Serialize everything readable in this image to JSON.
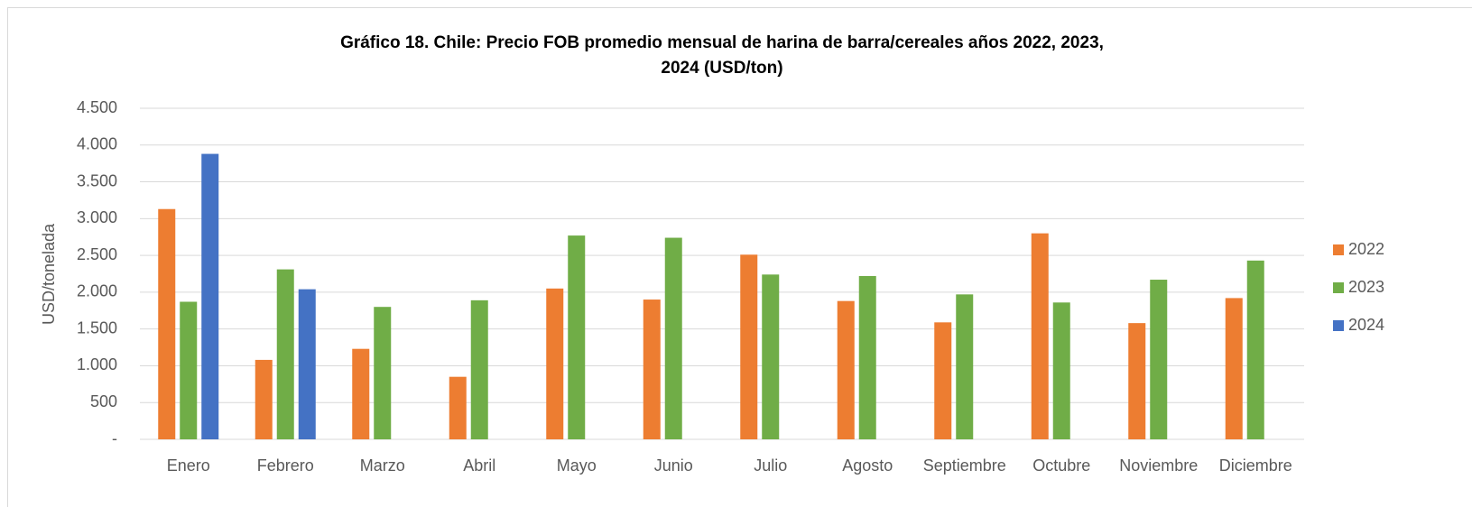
{
  "chart_data": {
    "type": "bar",
    "title": [
      "Gráfico 18. Chile: Precio FOB promedio mensual de harina de barra/cereales años 2022, 2023,",
      "2024 (USD/ton)"
    ],
    "y_label": "USD/tonelada",
    "categories": [
      "Enero",
      "Febrero",
      "Marzo",
      "Abril",
      "Mayo",
      "Junio",
      "Julio",
      "Agosto",
      "Septiembre",
      "Octubre",
      "Noviembre",
      "Diciembre"
    ],
    "series": [
      {
        "name": "2022",
        "color": "#ED7D31",
        "values": [
          3130,
          1080,
          1230,
          850,
          2050,
          1900,
          2510,
          1880,
          1590,
          2800,
          1580,
          1920
        ]
      },
      {
        "name": "2023",
        "color": "#70AD47",
        "values": [
          1870,
          2310,
          1800,
          1890,
          2770,
          2740,
          2240,
          2220,
          1970,
          1860,
          2170,
          2430
        ]
      },
      {
        "name": "2024",
        "color": "#4472C4",
        "values": [
          3880,
          2040,
          null,
          null,
          null,
          null,
          null,
          null,
          null,
          null,
          null,
          null
        ]
      }
    ],
    "ylim": [
      0,
      4500
    ],
    "yticks": [
      {
        "value": 0,
        "label": "-"
      },
      500,
      {
        "value": 1000,
        "label": "1.000"
      },
      {
        "value": 1500,
        "label": "1.500"
      },
      {
        "value": 2000,
        "label": "2.000"
      },
      {
        "value": 2500,
        "label": "2.500"
      },
      {
        "value": 3000,
        "label": "3.000"
      },
      {
        "value": 3500,
        "label": "3.500"
      },
      {
        "value": 4000,
        "label": "4.000"
      },
      {
        "value": 4500,
        "label": "4.500"
      }
    ],
    "grid": true,
    "legend": "right"
  }
}
